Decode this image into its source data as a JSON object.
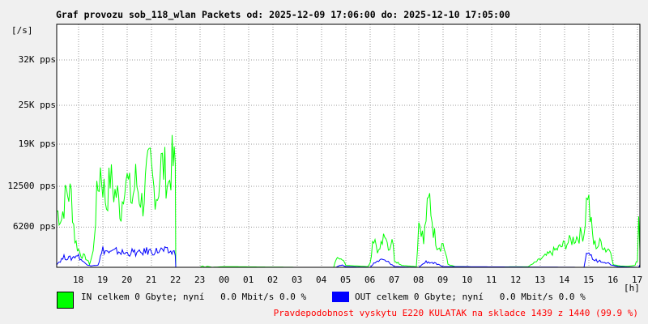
{
  "chart_data": {
    "type": "area",
    "title": "Graf provozu sob_118_wlan Packets od: 2025-12-09 17:06:00 do: 2025-12-10 17:05:00",
    "ylabel": "[/s]",
    "xlabel": "[h]",
    "ylim": [
      0,
      37500
    ],
    "yticks": [
      {
        "label": "6200 pps",
        "value": 6200
      },
      {
        "label": "12500 pps",
        "value": 12500
      },
      {
        "label": "19K pps",
        "value": 19000
      },
      {
        "label": "25K pps",
        "value": 25000
      },
      {
        "label": "32K pps",
        "value": 32000
      }
    ],
    "xticks": [
      "18",
      "19",
      "20",
      "21",
      "22",
      "23",
      "00",
      "01",
      "02",
      "03",
      "04",
      "05",
      "06",
      "07",
      "08",
      "09",
      "10",
      "11",
      "12",
      "13",
      "14",
      "15",
      "16",
      "17"
    ],
    "x_start_hour": 17.1,
    "grid": true,
    "series": [
      {
        "name": "IN",
        "color": "#00ff00",
        "x": [
          17.1,
          17.3,
          17.5,
          17.7,
          17.85,
          17.95,
          18.1,
          18.3,
          18.45,
          18.6,
          18.75,
          18.9,
          19.0,
          19.15,
          19.3,
          19.45,
          19.6,
          19.75,
          19.9,
          20.05,
          20.2,
          20.35,
          20.5,
          20.65,
          20.8,
          20.95,
          21.1,
          21.25,
          21.4,
          21.55,
          21.7,
          21.85,
          21.98,
          22.0,
          23.0,
          23.1,
          23.2,
          23.3,
          23.5,
          24.0,
          27.0,
          28.5,
          28.6,
          28.7,
          28.8,
          28.9,
          29.0,
          29.5,
          29.9,
          30.0,
          30.1,
          30.2,
          30.3,
          30.4,
          30.5,
          30.6,
          30.7,
          30.8,
          30.9,
          31.0,
          31.3,
          31.6,
          31.9,
          32.0,
          32.1,
          32.2,
          32.3,
          32.45,
          32.6,
          32.75,
          32.9,
          33.0,
          33.2,
          33.5,
          34.5,
          36.5,
          38.8,
          38.95,
          39.05,
          39.2,
          39.35,
          39.5,
          39.7,
          39.9,
          40.0,
          40.3,
          40.6,
          40.9,
          41.0,
          41.05,
          41.1
        ],
        "values": [
          9000,
          7800,
          12000,
          11500,
          4500,
          3200,
          2000,
          1500,
          500,
          2400,
          11000,
          15500,
          13500,
          10000,
          14500,
          12000,
          11500,
          8500,
          15000,
          13000,
          10500,
          14000,
          11500,
          10000,
          14500,
          16000,
          12500,
          11500,
          16500,
          15500,
          13000,
          16800,
          15800,
          0,
          0,
          200,
          0,
          150,
          0,
          100,
          0,
          0,
          1500,
          1200,
          1800,
          1000,
          300,
          200,
          100,
          600,
          3500,
          5800,
          3000,
          2500,
          4500,
          6200,
          4000,
          3000,
          5000,
          1200,
          300,
          200,
          100,
          7200,
          6500,
          3800,
          8000,
          11000,
          6000,
          3600,
          3300,
          3900,
          500,
          100,
          50,
          80,
          5500,
          12500,
          8000,
          3800,
          3400,
          4000,
          2800,
          3000,
          400,
          200,
          150,
          300,
          1200,
          8500,
          2500
        ]
      },
      {
        "name": "OUT",
        "color": "#0000ff",
        "x": [
          17.1,
          17.4,
          17.7,
          17.95,
          18.2,
          18.5,
          18.8,
          19.0,
          19.3,
          19.6,
          19.9,
          20.2,
          20.5,
          20.8,
          21.1,
          21.4,
          21.7,
          21.98,
          22.0,
          28.6,
          28.8,
          29.0,
          30.0,
          30.2,
          30.5,
          30.8,
          31.0,
          32.0,
          32.3,
          32.6,
          33.0,
          38.8,
          38.95,
          39.2,
          39.6,
          40.0,
          40.2,
          41.05,
          41.1
        ],
        "values": [
          500,
          1600,
          1400,
          2000,
          800,
          200,
          400,
          2800,
          2300,
          2600,
          2200,
          2400,
          2200,
          2600,
          2500,
          2700,
          2500,
          2300,
          0,
          0,
          400,
          100,
          0,
          800,
          1200,
          700,
          100,
          0,
          900,
          700,
          100,
          0,
          2700,
          1100,
          1000,
          300,
          100,
          0,
          400
        ]
      }
    ]
  },
  "legend": {
    "in_text": "IN celkem 0 Gbyte; nyní   0.0 Mbit/s 0.0 %",
    "out_text": "OUT celkem 0 Gbyte; nyní   0.0 Mbit/s 0.0 %"
  },
  "footer": "Pravdepodobnost vyskytu E220 KULATAK na skladce 1439 z 1440 (99.9 %)"
}
